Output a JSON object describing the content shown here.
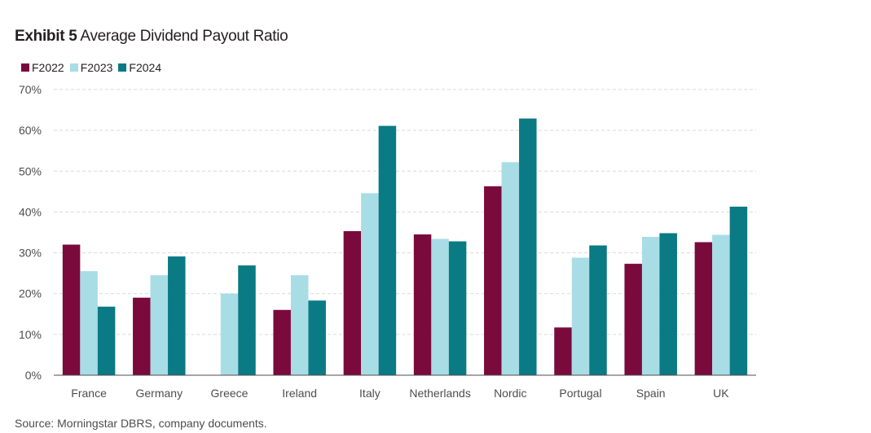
{
  "title": {
    "exhibit": "Exhibit 5",
    "text": "Average Dividend Payout Ratio"
  },
  "source": "Source: Morningstar DBRS, company documents.",
  "chart_data": {
    "type": "bar",
    "categories": [
      "France",
      "Germany",
      "Greece",
      "Ireland",
      "Italy",
      "Netherlands",
      "Nordic",
      "Portugal",
      "Spain",
      "UK"
    ],
    "series": [
      {
        "name": "F2022",
        "color": "#7a0a3c",
        "values": [
          32,
          19,
          null,
          16,
          35.3,
          34.5,
          46.3,
          11.7,
          27.3,
          32.6
        ]
      },
      {
        "name": "F2023",
        "color": "#a8dde5",
        "values": [
          25.5,
          24.5,
          20,
          24.5,
          44.6,
          33.4,
          52.2,
          28.8,
          33.9,
          34.4
        ]
      },
      {
        "name": "F2024",
        "color": "#0a7a84",
        "values": [
          16.8,
          29.1,
          26.9,
          18.3,
          61.1,
          32.8,
          62.9,
          31.8,
          34.8,
          41.3
        ]
      }
    ],
    "yticks": [
      "0%",
      "10%",
      "20%",
      "30%",
      "40%",
      "50%",
      "60%",
      "70%"
    ],
    "ylim": [
      0,
      70
    ],
    "grid": true,
    "legend_position": "top-left"
  }
}
